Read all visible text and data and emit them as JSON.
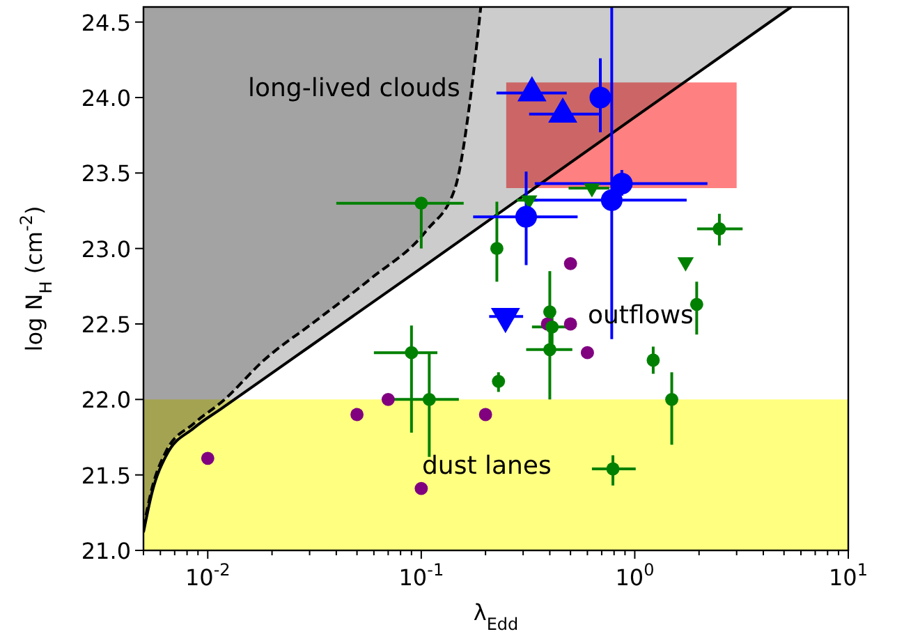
{
  "chart_data": {
    "type": "scatter",
    "xlabel": "λ$_{Edd}$",
    "ylabel": "log N$_{H}$ (cm$^{-2}$)",
    "log": "x",
    "xlim": [
      0.005,
      10
    ],
    "ylim": [
      21.0,
      24.6
    ],
    "xticks": [
      {
        "value": 0.01,
        "label": "10$^{-2}$"
      },
      {
        "value": 0.1,
        "label": "10$^{-1}$"
      },
      {
        "value": 1,
        "label": "10$^{0}$"
      },
      {
        "value": 10,
        "label": "10$^{1}$"
      }
    ],
    "yticks": [
      {
        "value": 21.0,
        "label": "21.0"
      },
      {
        "value": 21.5,
        "label": "21.5"
      },
      {
        "value": 22.0,
        "label": "22.0"
      },
      {
        "value": 22.5,
        "label": "22.5"
      },
      {
        "value": 23.0,
        "label": "23.0"
      },
      {
        "value": 23.5,
        "label": "23.5"
      },
      {
        "value": 24.0,
        "label": "24.0"
      },
      {
        "value": 24.5,
        "label": "24.5"
      }
    ],
    "grid": false,
    "bands": [
      {
        "axis": "y",
        "from": 21.0,
        "to": 22.0,
        "color": "#ffff80"
      }
    ],
    "series": [
      {
        "color": "#800080",
        "marker": "circle",
        "x": [
          0.5,
          0.39,
          0.5,
          0.6,
          0.2,
          0.01,
          0.05,
          0.07,
          0.1
        ],
        "values": [
          22.9,
          22.5,
          22.5,
          22.31,
          21.9,
          21.61,
          21.9,
          22.0,
          21.41
        ]
      },
      {
        "color": "#008000",
        "marker": "circle",
        "x": [
          0.1,
          0.226,
          2.49,
          0.4,
          0.41,
          0.4,
          0.23,
          1.22,
          1.49,
          1.95,
          0.79,
          0.09,
          0.109
        ],
        "values": [
          23.3,
          23.0,
          23.13,
          22.58,
          22.48,
          22.33,
          22.12,
          22.26,
          22.0,
          22.63,
          21.54,
          22.31,
          22.0
        ],
        "errors": [
          [
            23.0,
            23.33
          ],
          [
            22.78,
            23.31
          ],
          [
            23.02,
            23.23
          ],
          [
            22.45,
            22.85
          ],
          [
            22.35,
            22.6
          ],
          [
            22.0,
            22.5
          ],
          [
            22.05,
            22.18
          ],
          [
            22.17,
            22.35
          ],
          [
            21.7,
            22.18
          ],
          [
            22.43,
            22.78
          ],
          [
            21.43,
            21.63
          ],
          [
            21.78,
            22.49
          ],
          [
            21.62,
            22.31
          ]
        ],
        "xerrors": [
          [
            0.04,
            0.158
          ],
          null,
          [
            1.96,
            3.2
          ],
          null,
          [
            0.33,
            0.5
          ],
          [
            0.31,
            0.51
          ],
          null,
          null,
          null,
          null,
          [
            0.63,
            1.01
          ],
          [
            0.06,
            0.119
          ],
          [
            0.074,
            0.15
          ]
        ]
      },
      {
        "color": "#008000",
        "marker": "triangle-down",
        "x": [
          0.63,
          0.32,
          1.73
        ],
        "values": [
          23.4,
          23.32,
          22.91
        ],
        "xerrors": [
          [
            0.49,
            0.76
          ],
          [
            0.28,
            0.35
          ],
          null
        ]
      },
      {
        "color": "#0000ff",
        "marker": "circle",
        "x": [
          0.69,
          0.87,
          0.78,
          0.31
        ],
        "values": [
          24.0,
          23.43,
          23.32,
          23.21
        ],
        "errors": [
          [
            23.77,
            24.26
          ],
          [
            23.35,
            23.52
          ],
          [
            22.4,
            24.6
          ],
          [
            22.89,
            23.51
          ]
        ],
        "xerrors": [
          null,
          [
            0.34,
            2.19
          ],
          [
            0.335,
            1.75
          ],
          [
            0.175,
            0.54
          ]
        ]
      },
      {
        "color": "#0000ff",
        "marker": "triangle",
        "x": [
          0.33,
          0.46
        ],
        "values": [
          24.03,
          23.89
        ],
        "xerrors": [
          [
            0.225,
            0.48
          ],
          [
            0.32,
            0.69
          ]
        ]
      },
      {
        "color": "#0000ff",
        "marker": "triangle-down",
        "x": [
          0.248
        ],
        "values": [
          22.55
        ],
        "xerrors": [
          [
            0.208,
            0.3
          ]
        ]
      },
      {
        "type": "line",
        "color": "#000000",
        "line_style": "solid",
        "x": [
          0.005,
          0.0055,
          0.0064,
          0.0086,
          0.0116,
          0.03,
          0.1,
          1,
          5.4
        ],
        "values": [
          21.12,
          21.39,
          21.63,
          21.81,
          21.94,
          22.35,
          22.87,
          23.87,
          24.6
        ]
      },
      {
        "type": "line",
        "color": "#000000",
        "line_style": "dashed",
        "x": [
          0.005,
          0.0055,
          0.0064,
          0.0086,
          0.012,
          0.018,
          0.032,
          0.058,
          0.106,
          0.144,
          0.17,
          0.19
        ],
        "values": [
          21.15,
          21.42,
          21.66,
          21.84,
          22.0,
          22.25,
          22.52,
          22.8,
          23.12,
          23.4,
          24.0,
          24.6
        ]
      }
    ],
    "annotations": [
      "long-lived clouds",
      "outflows",
      "dust lanes"
    ]
  }
}
